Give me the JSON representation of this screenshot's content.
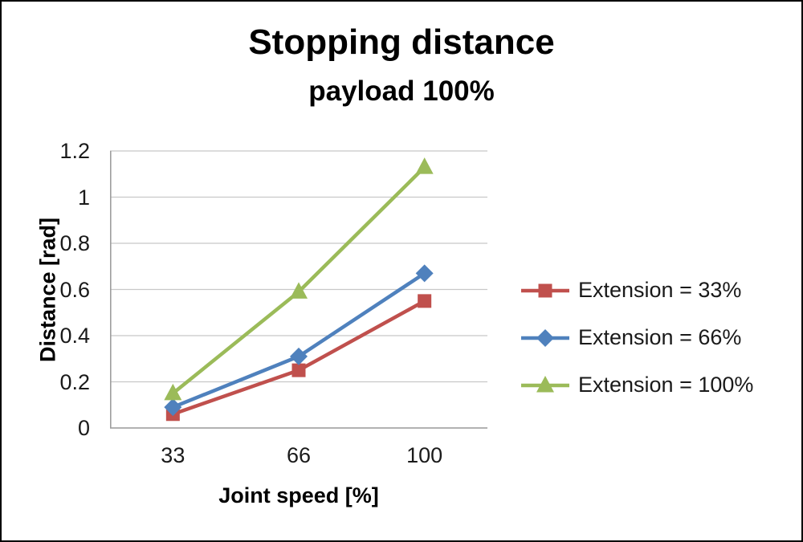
{
  "window": {
    "background": "#ffffff",
    "border_color": "#000000"
  },
  "chart_data": {
    "type": "line",
    "title": "Stopping distance",
    "subtitle": "payload 100%",
    "xlabel": "Joint speed [%]",
    "ylabel": "Distance [rad]",
    "categories": [
      "33",
      "66",
      "100"
    ],
    "y_ticks": [
      "0",
      "0.2",
      "0.4",
      "0.6",
      "0.8",
      "1",
      "1.2"
    ],
    "ylim": [
      0,
      1.2
    ],
    "grid": true,
    "legend_position": "right",
    "grid_color": "#c8c8c8",
    "axis_color": "#9e9e9e",
    "text_color": "#1a1a1a",
    "series": [
      {
        "name": "Extension = 33%",
        "marker": "square",
        "color": "#C0504D",
        "values": [
          0.06,
          0.25,
          0.55
        ]
      },
      {
        "name": "Extension = 66%",
        "marker": "diamond",
        "color": "#4F81BD",
        "values": [
          0.09,
          0.31,
          0.67
        ]
      },
      {
        "name": "Extension = 100%",
        "marker": "triangle",
        "color": "#9BBB59",
        "values": [
          0.15,
          0.59,
          1.13
        ]
      }
    ]
  }
}
